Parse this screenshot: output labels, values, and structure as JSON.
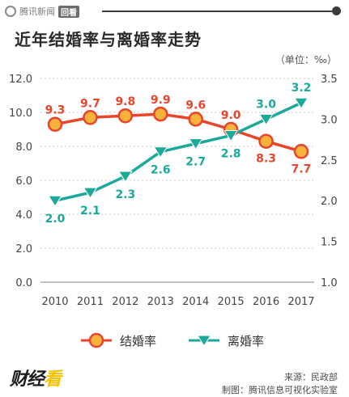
{
  "header": {
    "brand_name": "腾讯新闻",
    "brand_tag": "回看"
  },
  "title": "近年结婚率与离婚率走势",
  "unit_label": "（单位：‰）",
  "chart_data": {
    "type": "line",
    "title": "近年结婚率与离婚率走势",
    "categories": [
      "2010",
      "2011",
      "2012",
      "2013",
      "2014",
      "2015",
      "2016",
      "2017"
    ],
    "series": [
      {
        "name": "结婚率",
        "axis": "left",
        "color": "#e8452c",
        "marker": "orange-circle",
        "values": [
          9.3,
          9.7,
          9.8,
          9.9,
          9.6,
          9.0,
          8.3,
          7.7
        ]
      },
      {
        "name": "离婚率",
        "axis": "right",
        "color": "#1aa99b",
        "marker": "teal-triangle-down",
        "values": [
          2.0,
          2.1,
          2.3,
          2.6,
          2.7,
          2.8,
          3.0,
          3.2
        ]
      }
    ],
    "left_axis": {
      "range": [
        0,
        12
      ],
      "ticks": [
        "0.0",
        "2.0",
        "4.0",
        "6.0",
        "8.0",
        "10.0",
        "12.0"
      ]
    },
    "right_axis": {
      "range": [
        1.0,
        3.5
      ],
      "ticks": [
        "1.0",
        "1.5",
        "2.0",
        "2.5",
        "3.0",
        "3.5"
      ]
    },
    "grid": "horizontal-dashed",
    "legend_position": "bottom"
  },
  "footer": {
    "source": "来源：民政部",
    "credit": "制图：腾讯信息可视化实验室",
    "logo_text": "财经",
    "logo_accent": "看"
  }
}
